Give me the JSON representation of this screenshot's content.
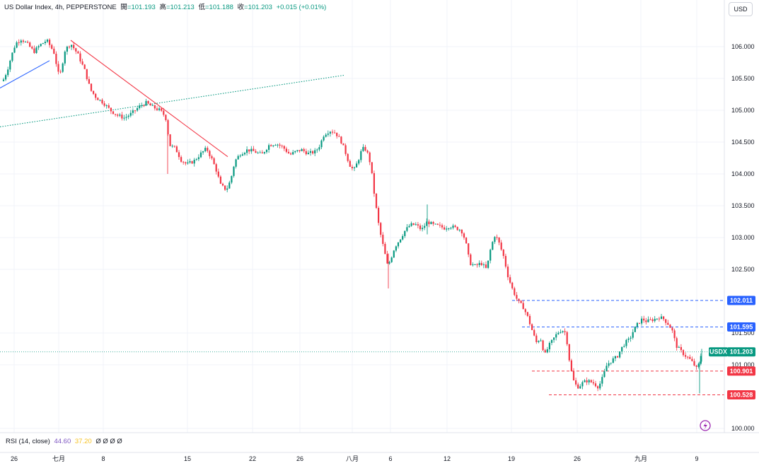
{
  "legend": {
    "symbol": "US Dollar Index, 4h, PEPPERSTONE",
    "open_label": "開",
    "open": "=101.193",
    "high_label": "高",
    "high": "=101.213",
    "low_label": "低",
    "low": "=101.188",
    "close_label": "收",
    "close": "=101.203",
    "change": "+0.015 (+0.01%)"
  },
  "currency_button": "USD",
  "rsi": {
    "label": "RSI (14, close)",
    "value": "44.60",
    "ma": "37.20",
    "extras": "Ø Ø Ø Ø"
  },
  "colors": {
    "up": "#089981",
    "down": "#f23645",
    "grid": "#f0f3fa",
    "blue_line": "#2962ff",
    "trend_red": "#f23645",
    "dotted_green": "#089981"
  },
  "chart_data": {
    "type": "candlestick",
    "title": "US Dollar Index, 4h, PEPPERSTONE",
    "ylim": [
      99.95,
      106.5
    ],
    "y_ticks": [
      106.0,
      105.5,
      105.0,
      104.5,
      104.0,
      103.5,
      103.0,
      102.5,
      101.5,
      101.0,
      100.0
    ],
    "y_tick_labels": [
      "106.000",
      "105.500",
      "105.000",
      "104.500",
      "104.000",
      "103.500",
      "103.000",
      "102.500",
      "101.500",
      "101.000",
      "100.000"
    ],
    "x_tick_labels": [
      "26",
      "七月",
      "8",
      "15",
      "22",
      "26",
      "八月",
      "6",
      "12",
      "19",
      "26",
      "九月",
      "9"
    ],
    "path": [
      [
        0,
        105.35
      ],
      [
        10,
        105.62
      ],
      [
        16,
        105.85
      ],
      [
        22,
        106.05
      ],
      [
        30,
        106.12
      ],
      [
        38,
        106.05
      ],
      [
        48,
        105.92
      ],
      [
        56,
        106.02
      ],
      [
        66,
        106.1
      ],
      [
        76,
        105.92
      ],
      [
        84,
        105.5
      ],
      [
        92,
        105.95
      ],
      [
        100,
        106.05
      ],
      [
        110,
        105.88
      ],
      [
        120,
        105.62
      ],
      [
        128,
        105.32
      ],
      [
        136,
        105.2
      ],
      [
        146,
        105.12
      ],
      [
        156,
        105.0
      ],
      [
        166,
        104.92
      ],
      [
        176,
        104.88
      ],
      [
        186,
        104.95
      ],
      [
        196,
        105.05
      ],
      [
        206,
        105.12
      ],
      [
        216,
        105.05
      ],
      [
        226,
        105.0
      ],
      [
        234,
        104.9
      ],
      [
        240,
        104.45
      ],
      [
        248,
        104.4
      ],
      [
        256,
        104.22
      ],
      [
        264,
        104.15
      ],
      [
        274,
        104.2
      ],
      [
        284,
        104.32
      ],
      [
        292,
        104.4
      ],
      [
        300,
        104.22
      ],
      [
        306,
        104.05
      ],
      [
        312,
        103.82
      ],
      [
        320,
        103.75
      ],
      [
        326,
        103.9
      ],
      [
        332,
        104.2
      ],
      [
        340,
        104.32
      ],
      [
        350,
        104.38
      ],
      [
        360,
        104.35
      ],
      [
        370,
        104.3
      ],
      [
        380,
        104.45
      ],
      [
        390,
        104.48
      ],
      [
        400,
        104.42
      ],
      [
        410,
        104.3
      ],
      [
        418,
        104.35
      ],
      [
        426,
        104.38
      ],
      [
        436,
        104.32
      ],
      [
        446,
        104.35
      ],
      [
        452,
        104.45
      ],
      [
        458,
        104.62
      ],
      [
        466,
        104.68
      ],
      [
        474,
        104.65
      ],
      [
        482,
        104.52
      ],
      [
        488,
        104.35
      ],
      [
        494,
        104.15
      ],
      [
        500,
        104.05
      ],
      [
        506,
        104.2
      ],
      [
        512,
        104.4
      ],
      [
        518,
        104.38
      ],
      [
        524,
        104.15
      ],
      [
        530,
        103.6
      ],
      [
        536,
        103.15
      ],
      [
        542,
        102.85
      ],
      [
        548,
        102.55
      ],
      [
        552,
        102.65
      ],
      [
        558,
        102.85
      ],
      [
        564,
        102.95
      ],
      [
        572,
        103.1
      ],
      [
        580,
        103.2
      ],
      [
        588,
        103.2
      ],
      [
        596,
        103.12
      ],
      [
        604,
        103.25
      ],
      [
        612,
        103.2
      ],
      [
        620,
        103.18
      ],
      [
        628,
        103.15
      ],
      [
        636,
        103.18
      ],
      [
        644,
        103.15
      ],
      [
        652,
        103.12
      ],
      [
        658,
        102.95
      ],
      [
        664,
        102.6
      ],
      [
        672,
        102.55
      ],
      [
        680,
        102.6
      ],
      [
        688,
        102.5
      ],
      [
        694,
        102.85
      ],
      [
        700,
        103.05
      ],
      [
        706,
        102.9
      ],
      [
        712,
        102.7
      ],
      [
        718,
        102.4
      ],
      [
        724,
        102.2
      ],
      [
        732,
        102.0
      ],
      [
        740,
        101.9
      ],
      [
        746,
        101.75
      ],
      [
        752,
        101.55
      ],
      [
        758,
        101.35
      ],
      [
        764,
        101.42
      ],
      [
        770,
        101.15
      ],
      [
        776,
        101.3
      ],
      [
        782,
        101.4
      ],
      [
        788,
        101.5
      ],
      [
        794,
        101.55
      ],
      [
        800,
        101.5
      ],
      [
        806,
        100.98
      ],
      [
        812,
        100.7
      ],
      [
        818,
        100.65
      ],
      [
        824,
        100.72
      ],
      [
        830,
        100.75
      ],
      [
        838,
        100.72
      ],
      [
        846,
        100.65
      ],
      [
        852,
        100.8
      ],
      [
        858,
        101.0
      ],
      [
        866,
        101.08
      ],
      [
        872,
        101.12
      ],
      [
        878,
        101.25
      ],
      [
        884,
        101.35
      ],
      [
        890,
        101.4
      ],
      [
        896,
        101.55
      ],
      [
        902,
        101.65
      ],
      [
        908,
        101.72
      ],
      [
        914,
        101.68
      ],
      [
        920,
        101.7
      ],
      [
        926,
        101.72
      ],
      [
        932,
        101.75
      ],
      [
        938,
        101.72
      ],
      [
        944,
        101.65
      ],
      [
        950,
        101.55
      ],
      [
        956,
        101.3
      ],
      [
        962,
        101.22
      ],
      [
        968,
        101.15
      ],
      [
        974,
        101.1
      ],
      [
        980,
        101.02
      ],
      [
        986,
        100.92
      ],
      [
        992,
        101.203
      ]
    ],
    "trendlines": [
      {
        "kind": "blue",
        "from": [
          0,
          105.35
        ],
        "to": [
          70,
          105.78
        ]
      },
      {
        "kind": "red",
        "from": [
          100,
          106.1
        ],
        "to": [
          322,
          104.27
        ]
      },
      {
        "kind": "dotted_green",
        "from": [
          0,
          104.74
        ],
        "to": [
          486,
          105.55
        ]
      }
    ],
    "levels": [
      {
        "value": 102.011,
        "label": "102.011",
        "color": "#2962ff",
        "from_x": 724
      },
      {
        "value": 101.595,
        "label": "101.595",
        "color": "#2962ff",
        "from_x": 738
      },
      {
        "value": 100.901,
        "label": "100.901",
        "color": "#f23645",
        "from_x": 752
      },
      {
        "value": 100.528,
        "label": "100.528",
        "color": "#f23645",
        "from_x": 776
      }
    ],
    "last_price": {
      "value": 101.203,
      "label": "101.203",
      "symbol": "USDX",
      "color": "#089981"
    }
  }
}
